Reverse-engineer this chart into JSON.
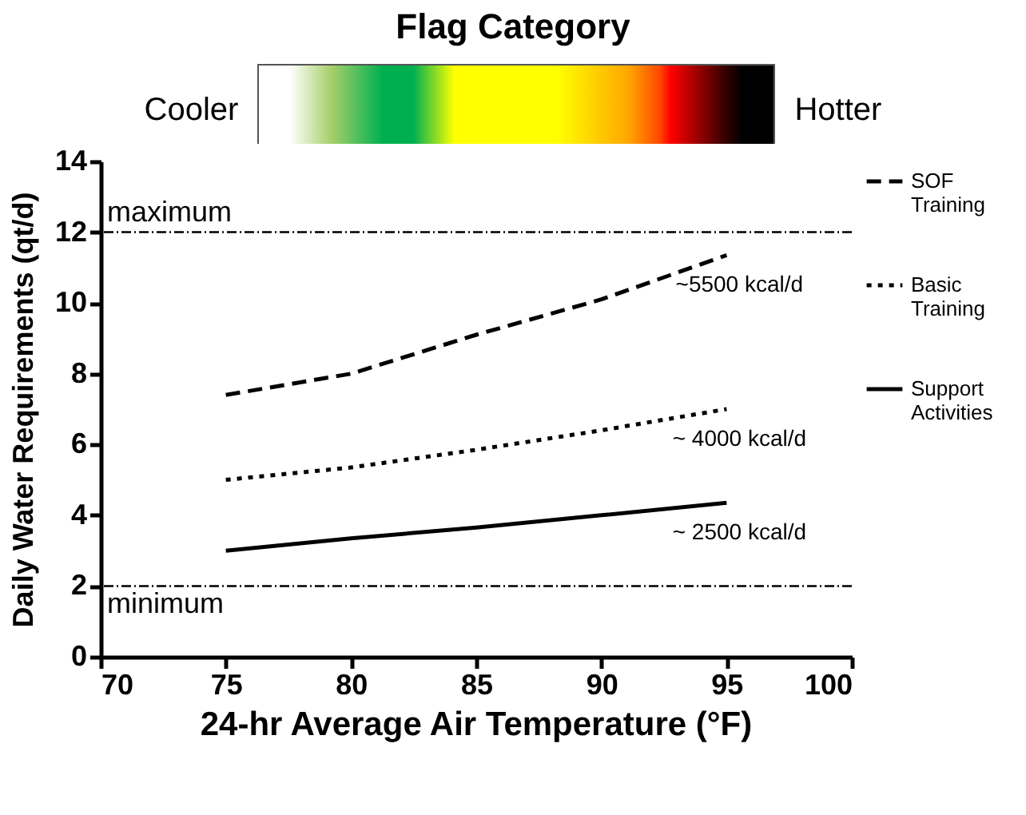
{
  "chart_data": {
    "type": "line",
    "title": "Flag Category",
    "xlabel": "24-hr Average Air Temperature (°F)",
    "ylabel": "Daily Water Requirements (qt/d)",
    "x": [
      75,
      80,
      85,
      90,
      95
    ],
    "series": [
      {
        "name": "SOF Training",
        "color": "#000000",
        "line_style": "dashed",
        "values": [
          7.4,
          8.0,
          9.1,
          10.1,
          11.35
        ]
      },
      {
        "name": "Basic Training",
        "color": "#000000",
        "line_style": "dotted",
        "values": [
          5.0,
          5.35,
          5.85,
          6.4,
          7.0
        ]
      },
      {
        "name": "Support Activities",
        "color": "#000000",
        "line_style": "solid",
        "values": [
          3.0,
          3.35,
          3.65,
          4.0,
          4.35
        ]
      }
    ],
    "xlim": [
      70,
      100
    ],
    "xticks": [
      70,
      75,
      80,
      85,
      90,
      95,
      100
    ],
    "ylim": [
      0,
      14
    ],
    "yticks": [
      0,
      2,
      4,
      6,
      8,
      10,
      12,
      14
    ],
    "ref_lines": [
      {
        "axis": "y",
        "value": 12,
        "label": "maximum",
        "color": "#000000",
        "line_style": "dashed"
      },
      {
        "axis": "y",
        "value": 2,
        "label": "minimum",
        "color": "#000000",
        "line_style": "dashed"
      }
    ],
    "annotations": [
      "Cooler",
      "Hotter",
      "~5500 kcal/d",
      "~ 4000 kcal/d",
      "~ 2500 kcal/d"
    ],
    "grid": false,
    "legend": "right",
    "marker": "none"
  }
}
